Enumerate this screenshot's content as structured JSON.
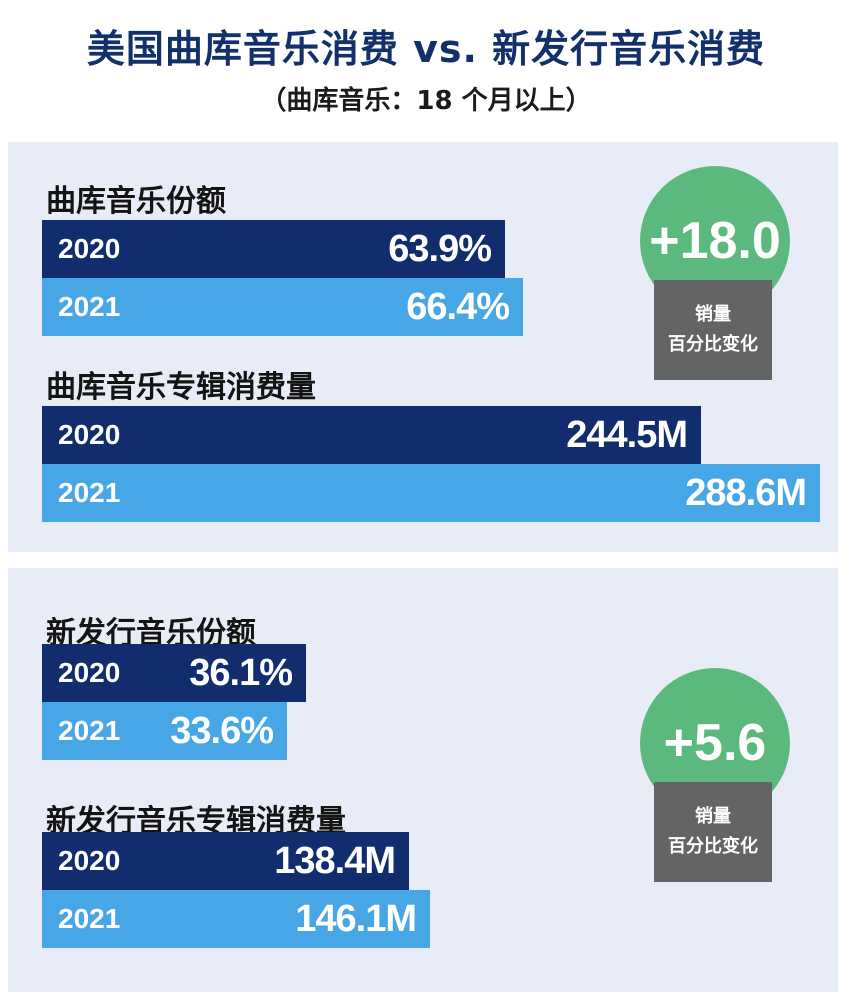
{
  "title": "美国曲库音乐消费 vs. 新发行音乐消费",
  "subtitle": "（曲库音乐：18 个月以上）",
  "colors": {
    "bar_2020": "#112d6d",
    "bar_2021": "#47a7e6",
    "badge_circle": "#5cb97e",
    "badge_label": "#636466",
    "panel_bg": "#e7ecf6"
  },
  "chart_data": [
    {
      "type": "bar",
      "orientation": "horizontal",
      "title": "曲库音乐份额",
      "unit": "%",
      "categories": [
        "2020",
        "2021"
      ],
      "values": [
        63.9,
        66.4
      ],
      "labels": [
        "63.9%",
        "66.4%"
      ],
      "xlim": [
        0,
        100
      ]
    },
    {
      "type": "bar",
      "orientation": "horizontal",
      "title": "曲库音乐专辑消费量",
      "unit": "M",
      "categories": [
        "2020",
        "2021"
      ],
      "values": [
        244.5,
        288.6
      ],
      "labels": [
        "244.5M",
        "288.6M"
      ],
      "xlim": [
        0,
        300
      ]
    },
    {
      "type": "bar",
      "orientation": "horizontal",
      "title": "新发行音乐份额",
      "unit": "%",
      "categories": [
        "2020",
        "2021"
      ],
      "values": [
        36.1,
        33.6
      ],
      "labels": [
        "36.1%",
        "33.6%"
      ],
      "xlim": [
        0,
        100
      ]
    },
    {
      "type": "bar",
      "orientation": "horizontal",
      "title": "新发行音乐专辑消费量",
      "unit": "M",
      "categories": [
        "2020",
        "2021"
      ],
      "values": [
        138.4,
        146.1
      ],
      "labels": [
        "138.4M",
        "146.1M"
      ],
      "xlim": [
        0,
        300
      ]
    }
  ],
  "badges": [
    {
      "value": "+18.0",
      "label_line1": "销量",
      "label_line2": "百分比变化"
    },
    {
      "value": "+5.6",
      "label_line1": "销量",
      "label_line2": "百分比变化"
    }
  ]
}
